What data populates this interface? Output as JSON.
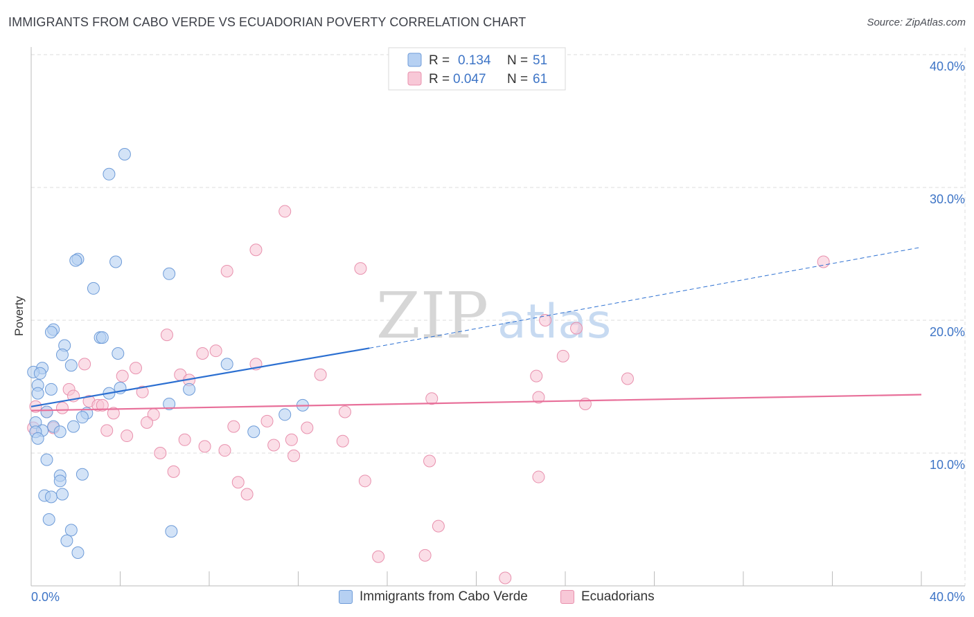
{
  "title": "IMMIGRANTS FROM CABO VERDE VS ECUADORIAN POVERTY CORRELATION CHART",
  "source": "Source: ZipAtlas.com",
  "watermark": {
    "zip": "ZIP",
    "atlas": "atlas"
  },
  "legend": {
    "rows": [
      {
        "r_label": "R =",
        "r_value": "0.134",
        "n_label": "N =",
        "n_value": "51"
      },
      {
        "r_label": "R =",
        "r_value": "0.047",
        "n_label": "N =",
        "n_value": "61"
      }
    ]
  },
  "bottom_legend": [
    "Immigrants from Cabo Verde",
    "Ecuadorians"
  ],
  "colors": {
    "blue_fill": "#b6d0f2",
    "blue_stroke": "#6d9bd8",
    "blue_line": "#2b6fd1",
    "pink_fill": "#f8c8d7",
    "pink_stroke": "#e890ad",
    "pink_line": "#e8709a",
    "tick_text": "#3d74c6",
    "grid": "#dcdcdc"
  },
  "chart_data": {
    "type": "scatter",
    "title": "IMMIGRANTS FROM CABO VERDE VS ECUADORIAN POVERTY CORRELATION CHART",
    "xlabel": "",
    "ylabel": "Poverty",
    "xlim": [
      0,
      40
    ],
    "ylim": [
      0,
      40
    ],
    "x_tick_labels": [
      "0.0%",
      "40.0%"
    ],
    "y_ticks": [
      10,
      20,
      30,
      40
    ],
    "y_tick_labels": [
      "10.0%",
      "20.0%",
      "30.0%",
      "40.0%"
    ],
    "grid": true,
    "legend_position": "top-center",
    "series": [
      {
        "name": "Immigrants from Cabo Verde",
        "r": 0.134,
        "n": 51,
        "trend": {
          "solid": [
            [
              0,
              13.5
            ],
            [
              15.2,
              17.9
            ]
          ],
          "dashed": [
            [
              15.2,
              17.9
            ],
            [
              40,
              25.5
            ]
          ]
        },
        "points": [
          [
            4.2,
            32.5
          ],
          [
            3.5,
            31.0
          ],
          [
            2.1,
            24.6
          ],
          [
            2.0,
            24.5
          ],
          [
            3.8,
            24.4
          ],
          [
            6.2,
            23.5
          ],
          [
            2.8,
            22.4
          ],
          [
            1.0,
            19.3
          ],
          [
            0.9,
            19.1
          ],
          [
            3.1,
            18.7
          ],
          [
            3.2,
            18.7
          ],
          [
            1.5,
            18.1
          ],
          [
            1.4,
            17.4
          ],
          [
            3.9,
            17.5
          ],
          [
            8.8,
            16.7
          ],
          [
            1.8,
            16.6
          ],
          [
            0.5,
            16.4
          ],
          [
            0.1,
            16.1
          ],
          [
            0.4,
            16.0
          ],
          [
            0.3,
            15.1
          ],
          [
            0.9,
            14.8
          ],
          [
            7.1,
            14.8
          ],
          [
            4.0,
            14.9
          ],
          [
            0.3,
            14.5
          ],
          [
            3.5,
            14.5
          ],
          [
            6.2,
            13.7
          ],
          [
            12.2,
            13.6
          ],
          [
            11.4,
            12.9
          ],
          [
            0.7,
            13.1
          ],
          [
            2.5,
            13.0
          ],
          [
            2.3,
            12.7
          ],
          [
            0.2,
            12.3
          ],
          [
            1.0,
            12.0
          ],
          [
            1.9,
            12.0
          ],
          [
            1.3,
            11.6
          ],
          [
            0.5,
            11.7
          ],
          [
            0.2,
            11.6
          ],
          [
            0.3,
            11.1
          ],
          [
            10.0,
            11.6
          ],
          [
            0.7,
            9.5
          ],
          [
            1.3,
            8.3
          ],
          [
            1.3,
            7.9
          ],
          [
            2.3,
            8.4
          ],
          [
            0.6,
            6.8
          ],
          [
            0.9,
            6.7
          ],
          [
            1.4,
            6.9
          ],
          [
            0.8,
            5.0
          ],
          [
            1.8,
            4.2
          ],
          [
            6.3,
            4.1
          ],
          [
            1.6,
            3.4
          ],
          [
            2.1,
            2.5
          ]
        ]
      },
      {
        "name": "Ecuadorians",
        "r": 0.047,
        "n": 61,
        "trend": {
          "solid": [
            [
              0,
              13.2
            ],
            [
              40,
              14.4
            ]
          ]
        },
        "points": [
          [
            11.4,
            28.2
          ],
          [
            10.1,
            25.3
          ],
          [
            35.6,
            24.4
          ],
          [
            8.8,
            23.7
          ],
          [
            14.8,
            23.9
          ],
          [
            23.1,
            20.0
          ],
          [
            24.5,
            19.4
          ],
          [
            6.1,
            18.9
          ],
          [
            8.3,
            17.7
          ],
          [
            7.7,
            17.5
          ],
          [
            23.9,
            17.3
          ],
          [
            2.4,
            16.7
          ],
          [
            10.1,
            16.7
          ],
          [
            4.7,
            16.4
          ],
          [
            4.1,
            15.8
          ],
          [
            6.7,
            15.9
          ],
          [
            13.0,
            15.9
          ],
          [
            22.7,
            15.8
          ],
          [
            26.8,
            15.6
          ],
          [
            7.1,
            15.5
          ],
          [
            1.7,
            14.8
          ],
          [
            5.0,
            14.6
          ],
          [
            1.9,
            14.3
          ],
          [
            18.0,
            14.1
          ],
          [
            22.8,
            14.2
          ],
          [
            2.6,
            13.9
          ],
          [
            3.0,
            13.6
          ],
          [
            3.2,
            13.6
          ],
          [
            0.2,
            13.5
          ],
          [
            1.4,
            13.4
          ],
          [
            24.9,
            13.7
          ],
          [
            0.7,
            13.1
          ],
          [
            3.7,
            13.0
          ],
          [
            5.5,
            12.9
          ],
          [
            14.1,
            13.1
          ],
          [
            5.2,
            12.3
          ],
          [
            10.6,
            12.4
          ],
          [
            12.4,
            11.9
          ],
          [
            9.1,
            12.0
          ],
          [
            3.4,
            11.7
          ],
          [
            1.0,
            11.9
          ],
          [
            4.3,
            11.3
          ],
          [
            6.9,
            11.0
          ],
          [
            11.7,
            11.0
          ],
          [
            14.0,
            10.9
          ],
          [
            7.8,
            10.5
          ],
          [
            8.7,
            10.2
          ],
          [
            10.9,
            10.6
          ],
          [
            5.8,
            10.0
          ],
          [
            11.8,
            9.8
          ],
          [
            17.9,
            9.4
          ],
          [
            6.4,
            8.6
          ],
          [
            22.8,
            8.2
          ],
          [
            9.3,
            7.8
          ],
          [
            15.0,
            7.9
          ],
          [
            9.7,
            6.9
          ],
          [
            18.3,
            4.5
          ],
          [
            15.6,
            2.2
          ],
          [
            17.7,
            2.3
          ],
          [
            21.3,
            0.6
          ],
          [
            0.1,
            11.9
          ]
        ]
      }
    ]
  }
}
